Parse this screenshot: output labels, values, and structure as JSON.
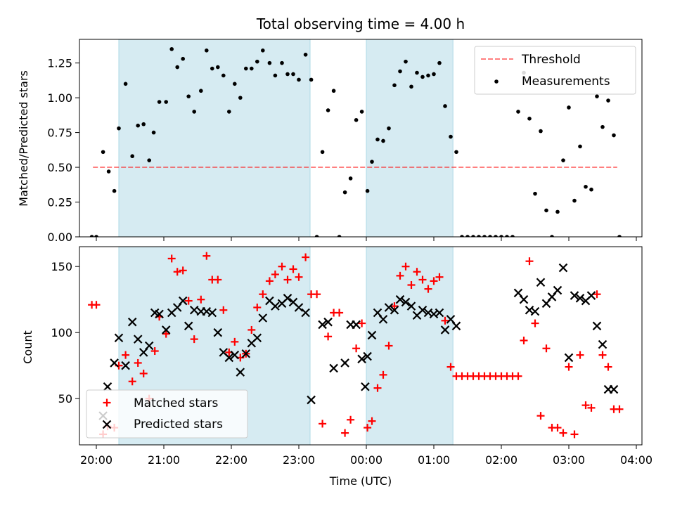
{
  "chart_data": [
    {
      "type": "scatter",
      "title": "Total observing time = 4.00 h",
      "xlabel": "",
      "ylabel": "Matched/Predicted stars",
      "xlim": [
        "19:45",
        "04:05"
      ],
      "ylim": [
        0,
        1.42
      ],
      "yticks": [
        0.0,
        0.25,
        0.5,
        0.75,
        1.0,
        1.25
      ],
      "ytick_labels": [
        "0.00",
        "0.25",
        "0.50",
        "0.75",
        "1.00",
        "1.25"
      ],
      "shaded_intervals": [
        [
          "20:20",
          "23:10"
        ],
        [
          "00:00",
          "01:17"
        ]
      ],
      "shade_color": "#add8e6",
      "threshold": {
        "name": "Threshold",
        "value": 0.5,
        "x_from": "19:57",
        "x_to": "03:43",
        "color": "#ff0000"
      },
      "legend": {
        "position": "upper right",
        "entries": [
          "Threshold",
          "Measurements"
        ]
      },
      "series": [
        {
          "name": "Measurements",
          "color": "#000000",
          "marker": "dot",
          "x": [
            "19:56",
            "20:00",
            "20:06",
            "20:11",
            "20:16",
            "20:20",
            "20:26",
            "20:32",
            "20:37",
            "20:42",
            "20:47",
            "20:51",
            "20:56",
            "21:02",
            "21:07",
            "21:12",
            "21:17",
            "21:22",
            "21:27",
            "21:33",
            "21:38",
            "21:43",
            "21:48",
            "21:53",
            "21:58",
            "22:03",
            "22:08",
            "22:13",
            "22:18",
            "22:23",
            "22:28",
            "22:34",
            "22:39",
            "22:45",
            "22:50",
            "22:55",
            "23:00",
            "23:06",
            "23:11",
            "23:16",
            "23:21",
            "23:26",
            "23:31",
            "23:36",
            "23:41",
            "23:46",
            "23:51",
            "23:56",
            "00:01",
            "00:05",
            "00:10",
            "00:15",
            "00:20",
            "00:25",
            "00:30",
            "00:35",
            "00:40",
            "00:45",
            "00:50",
            "00:55",
            "01:00",
            "01:05",
            "01:10",
            "01:15",
            "01:20",
            "01:25",
            "01:30",
            "01:35",
            "01:40",
            "01:45",
            "01:50",
            "01:55",
            "02:00",
            "02:05",
            "02:10",
            "02:15",
            "02:20",
            "02:25",
            "02:30",
            "02:35",
            "02:40",
            "02:45",
            "02:50",
            "02:55",
            "03:00",
            "03:05",
            "03:10",
            "03:15",
            "03:20",
            "03:25",
            "03:30",
            "03:35",
            "03:40",
            "03:45"
          ],
          "y": [
            0.0,
            0.0,
            0.61,
            0.47,
            0.33,
            0.78,
            1.1,
            0.58,
            0.8,
            0.81,
            0.55,
            0.75,
            0.97,
            0.97,
            1.35,
            1.22,
            1.28,
            1.01,
            0.9,
            1.05,
            1.34,
            1.21,
            1.22,
            1.16,
            0.9,
            1.1,
            1.0,
            1.21,
            1.21,
            1.26,
            1.34,
            1.25,
            1.16,
            1.25,
            1.17,
            1.17,
            1.13,
            1.31,
            1.13,
            0.0,
            0.61,
            0.91,
            1.05,
            0.0,
            0.32,
            0.42,
            0.84,
            0.9,
            0.33,
            0.54,
            0.7,
            0.69,
            0.78,
            1.09,
            1.19,
            1.26,
            1.08,
            1.18,
            1.15,
            1.16,
            1.17,
            1.25,
            0.94,
            0.72,
            0.61,
            0.0,
            0.0,
            0.0,
            0.0,
            0.0,
            0.0,
            0.0,
            0.0,
            0.0,
            0.0,
            0.9,
            1.18,
            0.85,
            0.31,
            0.76,
            0.19,
            0.0,
            0.18,
            0.55,
            0.93,
            0.26,
            0.65,
            0.36,
            0.34,
            1.01,
            0.79,
            0.98,
            0.73,
            0.0
          ]
        }
      ]
    },
    {
      "type": "scatter",
      "title": "",
      "xlabel": "Time (UTC)",
      "ylabel": "Count",
      "xlim": [
        "19:45",
        "04:05"
      ],
      "ylim": [
        15,
        165
      ],
      "yticks": [
        50,
        100,
        150
      ],
      "ytick_labels": [
        "50",
        "100",
        "150"
      ],
      "xticks": [
        "20:00",
        "21:00",
        "22:00",
        "23:00",
        "00:00",
        "01:00",
        "02:00",
        "03:00",
        "04:00"
      ],
      "shaded_intervals": [
        [
          "20:20",
          "23:10"
        ],
        [
          "00:00",
          "01:17"
        ]
      ],
      "shade_color": "#add8e6",
      "legend": {
        "position": "lower left",
        "entries": [
          "Matched stars",
          "Predicted stars"
        ]
      },
      "series": [
        {
          "name": "Matched stars",
          "color": "#ff0000",
          "marker": "+",
          "x": [
            "19:56",
            "20:00",
            "20:06",
            "20:10",
            "20:16",
            "20:20",
            "20:26",
            "20:32",
            "20:37",
            "20:42",
            "20:47",
            "20:52",
            "20:56",
            "21:02",
            "21:07",
            "21:12",
            "21:17",
            "21:22",
            "21:27",
            "21:33",
            "21:38",
            "21:43",
            "21:48",
            "21:53",
            "21:58",
            "22:03",
            "22:08",
            "22:13",
            "22:18",
            "22:23",
            "22:28",
            "22:34",
            "22:39",
            "22:45",
            "22:50",
            "22:55",
            "23:00",
            "23:06",
            "23:11",
            "23:16",
            "23:21",
            "23:26",
            "23:31",
            "23:36",
            "23:41",
            "23:46",
            "23:51",
            "23:56",
            "00:01",
            "00:05",
            "00:10",
            "00:15",
            "00:20",
            "00:25",
            "00:30",
            "00:35",
            "00:40",
            "00:45",
            "00:50",
            "00:55",
            "01:00",
            "01:05",
            "01:10",
            "01:15",
            "01:20",
            "01:25",
            "01:30",
            "01:35",
            "01:40",
            "01:45",
            "01:50",
            "01:55",
            "02:00",
            "02:05",
            "02:10",
            "02:15",
            "02:20",
            "02:25",
            "02:30",
            "02:35",
            "02:40",
            "02:45",
            "02:50",
            "02:55",
            "03:00",
            "03:05",
            "03:10",
            "03:15",
            "03:20",
            "03:25",
            "03:30",
            "03:35",
            "03:40",
            "03:45"
          ],
          "y": [
            121,
            121,
            23,
            29,
            28,
            75,
            83,
            63,
            77,
            69,
            50,
            86,
            112,
            99,
            156,
            146,
            147,
            124,
            95,
            125,
            158,
            140,
            140,
            117,
            85,
            93,
            81,
            84,
            102,
            119,
            129,
            139,
            144,
            150,
            140,
            148,
            142,
            157,
            129,
            129,
            31,
            97,
            115,
            115,
            24,
            34,
            88,
            107,
            28,
            33,
            58,
            68,
            90,
            120,
            143,
            150,
            136,
            146,
            140,
            133,
            139,
            142,
            109,
            74,
            67,
            67,
            67,
            67,
            67,
            67,
            67,
            67,
            67,
            67,
            67,
            67,
            94,
            154,
            107,
            37,
            88,
            28,
            28,
            24,
            74,
            23,
            83,
            45,
            43,
            129,
            83,
            74,
            42,
            42
          ]
        },
        {
          "name": "Predicted stars",
          "color": "#000000",
          "marker": "x",
          "x": [
            "20:06",
            "20:10",
            "20:16",
            "20:20",
            "20:26",
            "20:32",
            "20:37",
            "20:42",
            "20:47",
            "20:52",
            "20:56",
            "21:02",
            "21:07",
            "21:12",
            "21:17",
            "21:22",
            "21:27",
            "21:33",
            "21:38",
            "21:43",
            "21:48",
            "21:53",
            "21:58",
            "22:03",
            "22:08",
            "22:13",
            "22:18",
            "22:23",
            "22:28",
            "22:34",
            "22:39",
            "22:45",
            "22:50",
            "22:55",
            "23:00",
            "23:06",
            "23:11",
            "23:21",
            "23:26",
            "23:31",
            "23:41",
            "23:46",
            "23:51",
            "23:56",
            "23:59",
            "00:01",
            "00:05",
            "00:10",
            "00:15",
            "00:20",
            "00:25",
            "00:30",
            "00:35",
            "00:40",
            "00:45",
            "00:50",
            "00:55",
            "01:00",
            "01:05",
            "01:10",
            "01:15",
            "01:20",
            "02:15",
            "02:20",
            "02:25",
            "02:30",
            "02:35",
            "02:40",
            "02:45",
            "02:50",
            "02:55",
            "03:00",
            "03:05",
            "03:10",
            "03:15",
            "03:20",
            "03:25",
            "03:30",
            "03:35",
            "03:40"
          ],
          "y": [
            37,
            59,
            77,
            96,
            75,
            108,
            95,
            85,
            90,
            115,
            114,
            102,
            115,
            119,
            124,
            105,
            117,
            116,
            116,
            115,
            100,
            85,
            81,
            83,
            70,
            84,
            92,
            96,
            111,
            124,
            120,
            122,
            126,
            123,
            119,
            115,
            49,
            106,
            108,
            73,
            77,
            106,
            106,
            80,
            59,
            82,
            98,
            115,
            110,
            119,
            117,
            125,
            123,
            120,
            113,
            117,
            115,
            114,
            115,
            102,
            110,
            105,
            130,
            125,
            117,
            116,
            138,
            122,
            127,
            132,
            149,
            81,
            128,
            126,
            124,
            128,
            105,
            91,
            57,
            57
          ]
        }
      ]
    }
  ]
}
